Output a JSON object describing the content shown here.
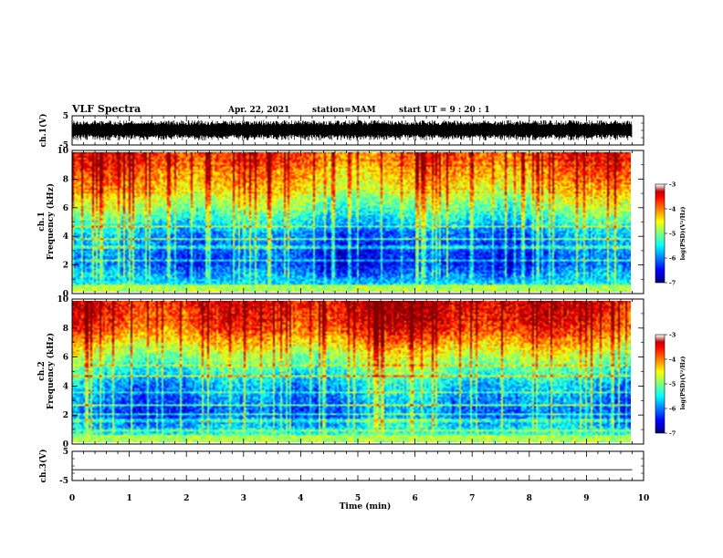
{
  "header": {
    "title": "VLF Spectra",
    "date": "Apr. 22, 2021",
    "station": "station=MAM",
    "start": "start  UT  =   9 : 20 : 1"
  },
  "chart_data": [
    {
      "type": "line",
      "name": "waveform-ch1",
      "ylabel": "ch.1(V)",
      "ylim": [
        -5,
        5
      ],
      "yticks": [
        5,
        -5
      ],
      "xlim": [
        0,
        10
      ],
      "amplitude": 3.5
    },
    {
      "type": "heatmap",
      "name": "spectrogram-ch1",
      "ylabel": [
        "ch.1",
        "Frequency  (kHz)"
      ],
      "ylim": [
        0,
        10
      ],
      "yticks": [
        0,
        2,
        4,
        6,
        8,
        10
      ],
      "xlim": [
        0,
        9.8
      ],
      "colorbar": {
        "label": "log(PSD)(V²/Hz)",
        "ticks": [
          -3,
          -4,
          -5,
          -6,
          -7
        ],
        "range": [
          -7,
          -3
        ]
      },
      "profile_khz_vs_log_psd": [
        [
          0,
          -5.3
        ],
        [
          2,
          -6.3
        ],
        [
          4,
          -6.0
        ],
        [
          6,
          -5.0
        ],
        [
          8,
          -4.2
        ],
        [
          10,
          -3.7
        ]
      ]
    },
    {
      "type": "heatmap",
      "name": "spectrogram-ch2",
      "ylabel": [
        "ch.2",
        "Frequency  (kHz)"
      ],
      "ylim": [
        0,
        10
      ],
      "yticks": [
        0,
        2,
        4,
        6,
        8,
        10
      ],
      "xlim": [
        0,
        9.8
      ],
      "colorbar": {
        "label": "log(PSD)(V²/Hz)",
        "ticks": [
          -3,
          -4,
          -5,
          -6,
          -7
        ],
        "range": [
          -7,
          -3
        ]
      },
      "profile_khz_vs_log_psd": [
        [
          0,
          -5.0
        ],
        [
          2,
          -6.1
        ],
        [
          4,
          -5.7
        ],
        [
          6,
          -4.8
        ],
        [
          8,
          -3.7
        ],
        [
          10,
          -3.3
        ]
      ]
    },
    {
      "type": "line",
      "name": "waveform-ch3",
      "ylabel": "ch.3(V)",
      "ylim": [
        -5,
        5
      ],
      "yticks": [
        5,
        -5
      ],
      "xlim": [
        0,
        9.8
      ],
      "constant": -1.3
    }
  ],
  "xaxis": {
    "label": "Time  (min)",
    "ticks": [
      0,
      1,
      2,
      3,
      4,
      5,
      6,
      7,
      8,
      9,
      10
    ]
  }
}
